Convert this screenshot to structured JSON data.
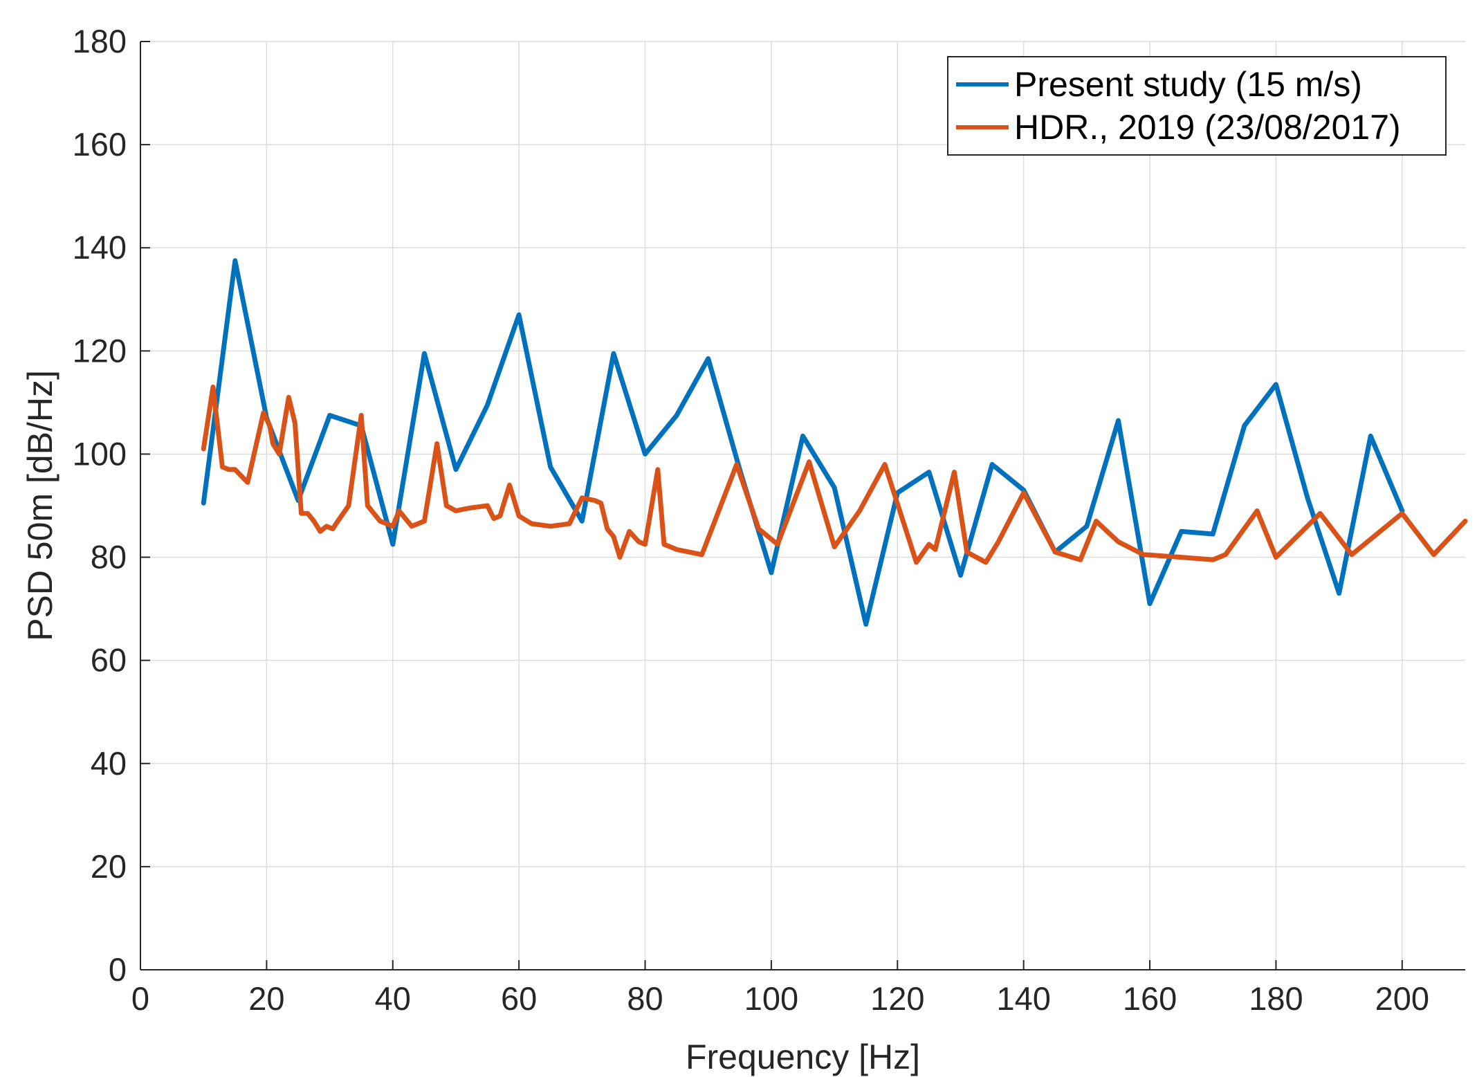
{
  "chart_data": {
    "type": "line",
    "title": "",
    "xlabel": "Frequency [Hz]",
    "ylabel": "PSD 50m [dB/Hz]",
    "xlim": [
      0,
      210
    ],
    "ylim": [
      0,
      180
    ],
    "xticks": [
      0,
      20,
      40,
      60,
      80,
      100,
      120,
      140,
      160,
      180,
      200
    ],
    "yticks": [
      0,
      20,
      40,
      60,
      80,
      100,
      120,
      140,
      160,
      180
    ],
    "grid": true,
    "legend_position": "top-right",
    "series": [
      {
        "name": "Present study (15 m/s)",
        "color": "#0072BD",
        "x": [
          10,
          15,
          20,
          25,
          30,
          35,
          40,
          45,
          50,
          55,
          60,
          65,
          70,
          75,
          80,
          85,
          90,
          95,
          100,
          105,
          110,
          115,
          120,
          125,
          130,
          135,
          140,
          145,
          150,
          155,
          160,
          165,
          170,
          175,
          180,
          185,
          190,
          195,
          200
        ],
        "y": [
          90.5,
          137.5,
          107,
          91,
          107.5,
          105.5,
          82.5,
          119.5,
          97,
          109.5,
          127,
          97.5,
          87,
          119.5,
          100,
          107.5,
          118.5,
          97,
          77,
          103.5,
          93.5,
          67,
          92.5,
          96.5,
          76.5,
          98,
          93,
          81,
          86,
          106.5,
          71,
          85,
          84.5,
          105.5,
          113.5,
          91.5,
          73,
          103.5,
          89
        ]
      },
      {
        "name": "HDR., 2019 (23/08/2017)",
        "color": "#D95319",
        "x": [
          10,
          11.5,
          13,
          14,
          15,
          17,
          19.5,
          20.5,
          21,
          22,
          23.5,
          24.5,
          25.5,
          26.5,
          27.5,
          28.5,
          29.5,
          30.5,
          31,
          33,
          35,
          36,
          38,
          40,
          41,
          43,
          45,
          47,
          48.5,
          50,
          52,
          55,
          56,
          57,
          58.5,
          60,
          62,
          65,
          68,
          70,
          72,
          73,
          74,
          75,
          76,
          77.5,
          79,
          80,
          82,
          83,
          85,
          89,
          94.5,
          98,
          101,
          106,
          110,
          114,
          118,
          123,
          125,
          126,
          129,
          131,
          134,
          136,
          140,
          145,
          149,
          151.5,
          155,
          159,
          165,
          170,
          172,
          177,
          180,
          187,
          192,
          200,
          205,
          210
        ],
        "y": [
          101,
          113,
          97.5,
          97,
          97,
          94.5,
          108,
          105.5,
          102,
          100,
          111,
          106,
          88.5,
          88.5,
          87,
          85,
          86,
          85.5,
          86.5,
          90,
          107.5,
          90,
          87,
          86,
          89,
          86,
          87,
          102,
          90,
          89,
          89.5,
          90,
          87.5,
          88,
          94,
          88,
          86.5,
          86,
          86.5,
          91.5,
          91,
          90.5,
          85.5,
          84,
          80,
          85,
          83,
          82.5,
          97,
          82.5,
          81.5,
          80.5,
          98,
          85.5,
          82.5,
          98.5,
          82,
          89,
          98,
          79,
          82.5,
          81.5,
          96.5,
          81,
          79,
          83,
          92.5,
          81,
          79.5,
          87,
          83,
          80.5,
          80,
          79.5,
          80.5,
          89,
          80,
          88.5,
          80.5,
          88.5,
          80.5,
          87
        ]
      }
    ]
  }
}
